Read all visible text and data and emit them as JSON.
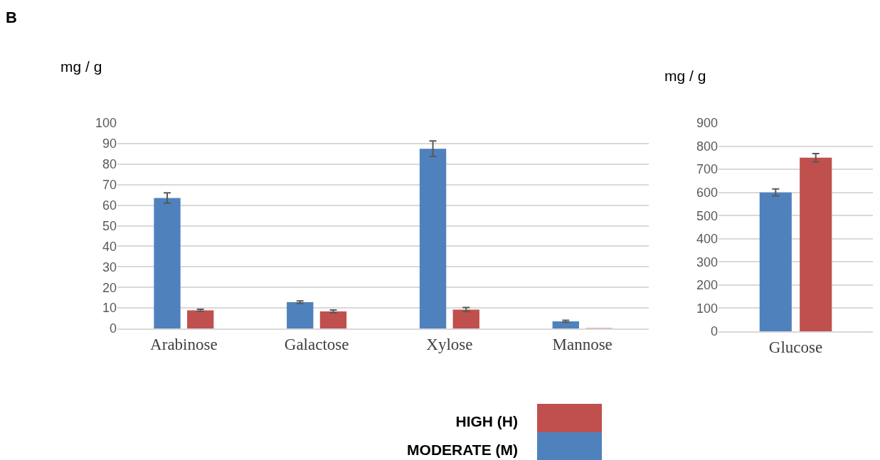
{
  "chart_data": [
    {
      "type": "bar",
      "ylabel": "mg / g",
      "annotations": [
        "B"
      ],
      "categories": [
        "Arabinose",
        "Galactose",
        "Xylose",
        "Mannose"
      ],
      "series": [
        {
          "name": "MODERATE (M)",
          "color": "#4f81bd",
          "values": [
            63.5,
            12.8,
            87.5,
            3.5
          ],
          "errors": [
            2.5,
            0.6,
            3.8,
            0.5
          ]
        },
        {
          "name": "HIGH (H)",
          "color": "#c0504d",
          "values": [
            8.8,
            8.3,
            9.2,
            0.2
          ],
          "errors": [
            0.5,
            0.7,
            1,
            null
          ]
        }
      ],
      "ylim": [
        0,
        100
      ],
      "yticks": [
        0,
        10,
        20,
        30,
        40,
        50,
        60,
        70,
        80,
        90,
        100
      ],
      "grid": "y",
      "legend": "bottom"
    },
    {
      "type": "bar",
      "ylabel": "mg / g",
      "categories": [
        "Glucose"
      ],
      "series": [
        {
          "color": "#4f81bd",
          "values": [
            600
          ],
          "errors": [
            15
          ]
        },
        {
          "color": "#c0504d",
          "values": [
            750
          ],
          "errors": [
            18
          ]
        }
      ],
      "ylim": [
        0,
        900
      ],
      "yticks": [
        0,
        100,
        200,
        300,
        400,
        500,
        600,
        700,
        800,
        900
      ],
      "grid": "y"
    }
  ]
}
